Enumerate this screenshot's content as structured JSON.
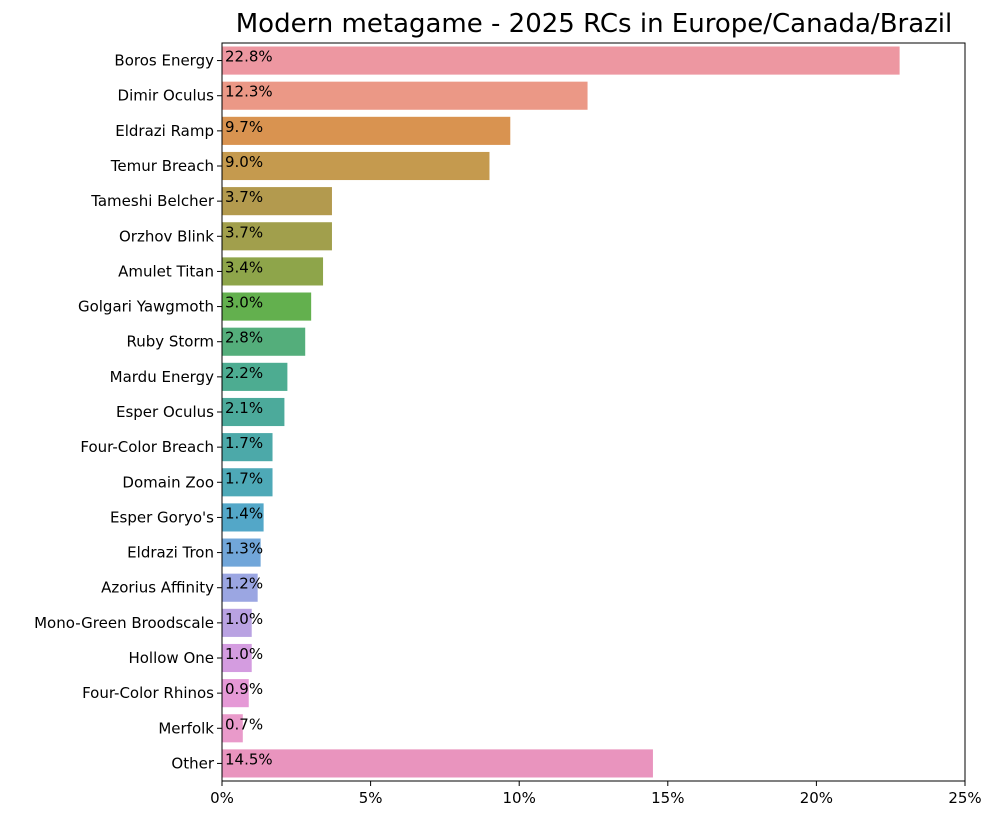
{
  "chart_data": {
    "type": "bar",
    "orientation": "horizontal",
    "title": "Modern metagame - 2025 RCs in Europe/Canada/Brazil",
    "xlabel": "",
    "ylabel": "",
    "xlim": [
      0,
      25
    ],
    "x_ticks": [
      0,
      5,
      10,
      15,
      20,
      25
    ],
    "x_tick_labels": [
      "0%",
      "5%",
      "10%",
      "15%",
      "20%",
      "25%"
    ],
    "grid": false,
    "categories": [
      "Boros Energy",
      "Dimir Oculus",
      "Eldrazi Ramp",
      "Temur Breach",
      "Tameshi Belcher",
      "Orzhov Blink",
      "Amulet Titan",
      "Golgari Yawgmoth",
      "Ruby Storm",
      "Mardu Energy",
      "Esper Oculus",
      "Four-Color Breach",
      "Domain Zoo",
      "Esper Goryo's",
      "Eldrazi Tron",
      "Azorius Affinity",
      "Mono-Green Broodscale",
      "Hollow One",
      "Four-Color Rhinos",
      "Merfolk",
      "Other"
    ],
    "values": [
      22.8,
      12.3,
      9.7,
      9.0,
      3.7,
      3.7,
      3.4,
      3.0,
      2.8,
      2.2,
      2.1,
      1.7,
      1.7,
      1.4,
      1.3,
      1.2,
      1.0,
      1.0,
      0.9,
      0.7,
      14.5
    ],
    "data_labels": [
      "22.8%",
      "12.3%",
      "9.7%",
      "9.0%",
      "3.7%",
      "3.7%",
      "3.4%",
      "3.0%",
      "2.8%",
      "2.2%",
      "2.1%",
      "1.7%",
      "1.7%",
      "1.4%",
      "1.3%",
      "1.2%",
      "1.0%",
      "1.0%",
      "0.9%",
      "0.7%",
      "14.5%"
    ],
    "colors": [
      "#ED97A1",
      "#EB9886",
      "#D99350",
      "#C59A4E",
      "#B39A4E",
      "#A19F4C",
      "#8EA54A",
      "#63B04E",
      "#54AE7B",
      "#4DAC91",
      "#4CAA9B",
      "#4CA9A9",
      "#4EA9B7",
      "#53A7C8",
      "#71A6D9",
      "#9BA6E2",
      "#B9A2E2",
      "#D49CE0",
      "#E599D6",
      "#E99ACA",
      "#E994BE"
    ]
  }
}
